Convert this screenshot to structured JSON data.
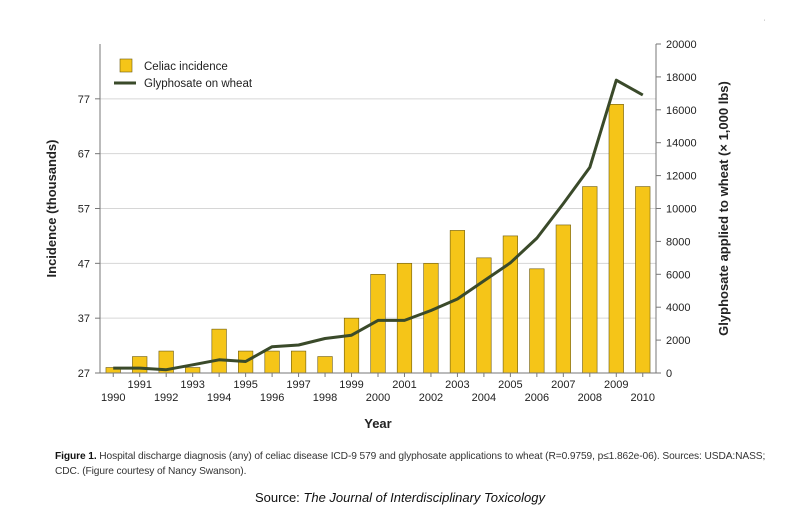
{
  "chart_data": {
    "type": "bar+line",
    "categories": [
      "1990",
      "1991",
      "1992",
      "1993",
      "1994",
      "1995",
      "1996",
      "1997",
      "1998",
      "1999",
      "2000",
      "2001",
      "2002",
      "2003",
      "2004",
      "2005",
      "2006",
      "2007",
      "2008",
      "2009",
      "2010"
    ],
    "series": [
      {
        "name": "Celiac incidence",
        "type": "bar",
        "axis": "left",
        "color": "#f5c518",
        "values": [
          28,
          30,
          31,
          28,
          35,
          31,
          31,
          31,
          30,
          37,
          45,
          47,
          47,
          53,
          48,
          52,
          46,
          54,
          61,
          76,
          61
        ]
      },
      {
        "name": "Glyphosate on wheat",
        "type": "line",
        "axis": "right",
        "color": "#3a4a2a",
        "values": [
          300,
          300,
          200,
          500,
          800,
          700,
          1600,
          1700,
          2100,
          2300,
          3200,
          3200,
          3800,
          4500,
          5600,
          6700,
          8200,
          10300,
          12500,
          17800,
          16900
        ]
      }
    ],
    "ylabel": "Incidence (thousands)",
    "y2label": "Glyphosate applied to wheat (× 1,000 lbs)",
    "xlabel": "Year",
    "ylim": [
      27,
      87
    ],
    "yticks": [
      27,
      37,
      47,
      57,
      67,
      77
    ],
    "y2lim": [
      0,
      20000
    ],
    "y2ticks": [
      0,
      2000,
      4000,
      6000,
      8000,
      10000,
      12000,
      14000,
      16000,
      18000,
      20000
    ],
    "legend": [
      "Celiac incidence",
      "Glyphosate on wheat"
    ],
    "legend_position": "top-left"
  },
  "caption": {
    "label": "Figure 1.",
    "text": "Hospital discharge diagnosis (any) of celiac disease ICD-9 579 and glyphosate applications to wheat (R=0.9759, p≤1.862e-06). Sources: USDA:NASS; CDC. (Figure courtesy of Nancy Swanson)."
  },
  "source": {
    "prefix": "Source: ",
    "journal": "The Journal of Interdisciplinary Toxicology"
  }
}
